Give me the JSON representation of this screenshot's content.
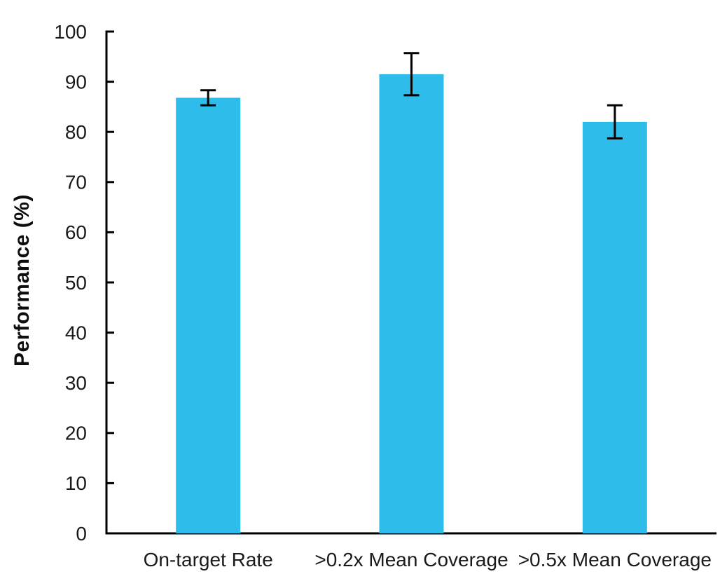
{
  "chart_data": {
    "type": "bar",
    "title": "",
    "categories": [
      "On-target Rate",
      ">0.2x Mean Coverage",
      ">0.5x Mean Coverage"
    ],
    "values": [
      86.8,
      91.5,
      82.0
    ],
    "errors": [
      1.5,
      4.2,
      3.3
    ],
    "xlabel": "",
    "ylabel": "Performance (%)",
    "ylim": [
      0,
      100
    ],
    "yticks": [
      0,
      10,
      20,
      30,
      40,
      50,
      60,
      70,
      80,
      90,
      100
    ],
    "grid": false,
    "legend": false,
    "bar_color": "#2EBCEA",
    "error_bar_color": "#000000",
    "axis_color": "#000000",
    "tick_label_color": "#1a1a1a",
    "category_label_color": "#1a1a1a"
  }
}
